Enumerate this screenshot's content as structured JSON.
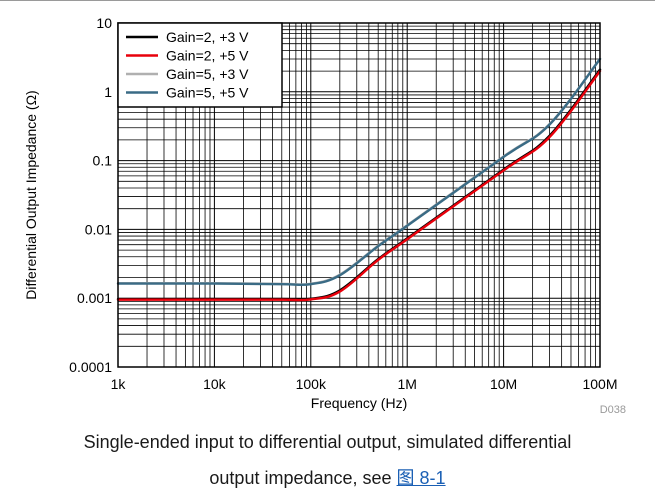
{
  "chart_data": {
    "type": "line",
    "xscale": "log",
    "yscale": "log",
    "xlabel": "Frequency (Hz)",
    "ylabel": "Differential Output Impedance (Ω)",
    "xlim": [
      1000,
      100000000
    ],
    "ylim": [
      0.0001,
      10
    ],
    "x_ticks": [
      1000,
      10000,
      100000,
      1000000,
      10000000,
      100000000
    ],
    "x_tick_labels": [
      "1k",
      "10k",
      "100k",
      "1M",
      "10M",
      "100M"
    ],
    "y_ticks": [
      0.0001,
      0.001,
      0.01,
      0.1,
      1,
      10
    ],
    "y_tick_labels": [
      "0.0001",
      "0.001",
      "0.01",
      "0.1",
      "1",
      "10"
    ],
    "grid": true,
    "legend_position": "top-left",
    "figure_id": "D038",
    "series": [
      {
        "name": "Gain=2, +3 V",
        "color": "#000000",
        "x": [
          1000,
          10000,
          50000,
          100000,
          200000,
          500000,
          1000000,
          10000000,
          30000000,
          100000000
        ],
        "y": [
          0.00097,
          0.00097,
          0.00097,
          0.00098,
          0.0013,
          0.0037,
          0.0074,
          0.074,
          0.23,
          2.1
        ]
      },
      {
        "name": "Gain=2, +5 V",
        "color": "#e8000b",
        "x": [
          1000,
          10000,
          50000,
          100000,
          200000,
          500000,
          1000000,
          10000000,
          30000000,
          100000000
        ],
        "y": [
          0.00095,
          0.00095,
          0.00095,
          0.00096,
          0.00125,
          0.0036,
          0.0072,
          0.072,
          0.22,
          2.0
        ]
      },
      {
        "name": "Gain=5, +3 V",
        "color": "#b0b0b0",
        "x": [
          1000,
          10000,
          50000,
          100000,
          200000,
          500000,
          1000000,
          10000000,
          30000000,
          100000000
        ],
        "y": [
          0.00165,
          0.00165,
          0.00162,
          0.00162,
          0.0022,
          0.0058,
          0.0115,
          0.115,
          0.34,
          3.0
        ]
      },
      {
        "name": "Gain=5, +5 V",
        "color": "#3a6b85",
        "x": [
          1000,
          10000,
          50000,
          100000,
          200000,
          500000,
          1000000,
          10000000,
          30000000,
          100000000
        ],
        "y": [
          0.00163,
          0.00163,
          0.0016,
          0.0016,
          0.00215,
          0.0057,
          0.0113,
          0.113,
          0.335,
          3.0
        ]
      }
    ]
  },
  "caption": {
    "line1": "Single-ended input to differential output, simulated differential",
    "line2_text": "output impedance, see ",
    "line2_ref": "图 8-1"
  }
}
